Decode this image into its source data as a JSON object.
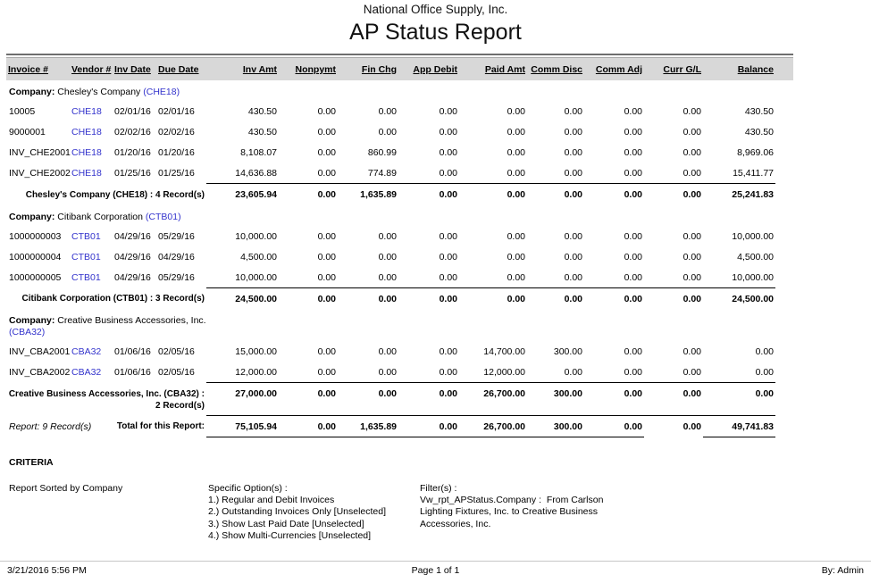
{
  "header": {
    "company": "National Office Supply, Inc.",
    "title": "AP Status Report"
  },
  "colors": {
    "link_blue": "#3333cc",
    "header_band": "#d8d8d8"
  },
  "table": {
    "columns": [
      {
        "key": "invoice",
        "label": "Invoice #",
        "align": "left"
      },
      {
        "key": "vendor",
        "label": "Vendor #",
        "align": "left"
      },
      {
        "key": "inv-date",
        "label": "Inv Date",
        "align": "left"
      },
      {
        "key": "due-date",
        "label": "Due Date",
        "align": "left"
      },
      {
        "key": "inv-amt",
        "label": "Inv Amt",
        "align": "right"
      },
      {
        "key": "nonpymt",
        "label": "Nonpymt",
        "align": "right"
      },
      {
        "key": "fin-chg",
        "label": "Fin Chg",
        "align": "right"
      },
      {
        "key": "app-debit",
        "label": "App Debit",
        "align": "right"
      },
      {
        "key": "paid-amt",
        "label": "Paid Amt",
        "align": "right"
      },
      {
        "key": "comm-disc",
        "label": "Comm Disc",
        "align": "right"
      },
      {
        "key": "comm-adj",
        "label": "Comm Adj",
        "align": "right"
      },
      {
        "key": "curr-gl",
        "label": "Curr G/L",
        "align": "right"
      },
      {
        "key": "balance",
        "label": "Balance",
        "align": "right"
      }
    ],
    "company_prefix": "Company:",
    "groups": [
      {
        "company_name": "Chesley's Company",
        "company_code": "(CHE18)",
        "rows": [
          {
            "invoice": "10005",
            "vendor": "CHE18",
            "inv_date": "02/01/16",
            "due_date": "02/01/16",
            "values": [
              "430.50",
              "0.00",
              "0.00",
              "0.00",
              "0.00",
              "0.00",
              "0.00",
              "0.00",
              "430.50"
            ]
          },
          {
            "invoice": "9000001",
            "vendor": "CHE18",
            "inv_date": "02/02/16",
            "due_date": "02/02/16",
            "values": [
              "430.50",
              "0.00",
              "0.00",
              "0.00",
              "0.00",
              "0.00",
              "0.00",
              "0.00",
              "430.50"
            ]
          },
          {
            "invoice": "INV_CHE2001",
            "vendor": "CHE18",
            "inv_date": "01/20/16",
            "due_date": "01/20/16",
            "values": [
              "8,108.07",
              "0.00",
              "860.99",
              "0.00",
              "0.00",
              "0.00",
              "0.00",
              "0.00",
              "8,969.06"
            ]
          },
          {
            "invoice": "INV_CHE2002",
            "vendor": "CHE18",
            "inv_date": "01/25/16",
            "due_date": "01/25/16",
            "values": [
              "14,636.88",
              "0.00",
              "774.89",
              "0.00",
              "0.00",
              "0.00",
              "0.00",
              "0.00",
              "15,411.77"
            ]
          }
        ],
        "subtotal_label": "Chesley's Company (CHE18) : 4 Record(s)",
        "subtotal_values": [
          "23,605.94",
          "0.00",
          "1,635.89",
          "0.00",
          "0.00",
          "0.00",
          "0.00",
          "0.00",
          "25,241.83"
        ]
      },
      {
        "company_name": "Citibank Corporation",
        "company_code": "(CTB01)",
        "rows": [
          {
            "invoice": "1000000003",
            "vendor": "CTB01",
            "inv_date": "04/29/16",
            "due_date": "05/29/16",
            "values": [
              "10,000.00",
              "0.00",
              "0.00",
              "0.00",
              "0.00",
              "0.00",
              "0.00",
              "0.00",
              "10,000.00"
            ]
          },
          {
            "invoice": "1000000004",
            "vendor": "CTB01",
            "inv_date": "04/29/16",
            "due_date": "04/29/16",
            "values": [
              "4,500.00",
              "0.00",
              "0.00",
              "0.00",
              "0.00",
              "0.00",
              "0.00",
              "0.00",
              "4,500.00"
            ]
          },
          {
            "invoice": "1000000005",
            "vendor": "CTB01",
            "inv_date": "04/29/16",
            "due_date": "05/29/16",
            "values": [
              "10,000.00",
              "0.00",
              "0.00",
              "0.00",
              "0.00",
              "0.00",
              "0.00",
              "0.00",
              "10,000.00"
            ]
          }
        ],
        "subtotal_label": "Citibank Corporation (CTB01) : 3 Record(s)",
        "subtotal_values": [
          "24,500.00",
          "0.00",
          "0.00",
          "0.00",
          "0.00",
          "0.00",
          "0.00",
          "0.00",
          "24,500.00"
        ]
      },
      {
        "company_name": "Creative Business Accessories, Inc.",
        "company_code": "(CBA32)",
        "rows": [
          {
            "invoice": "INV_CBA2001",
            "vendor": "CBA32",
            "inv_date": "01/06/16",
            "due_date": "02/05/16",
            "values": [
              "15,000.00",
              "0.00",
              "0.00",
              "0.00",
              "14,700.00",
              "300.00",
              "0.00",
              "0.00",
              "0.00"
            ]
          },
          {
            "invoice": "INV_CBA2002",
            "vendor": "CBA32",
            "inv_date": "01/06/16",
            "due_date": "02/05/16",
            "values": [
              "12,000.00",
              "0.00",
              "0.00",
              "0.00",
              "12,000.00",
              "0.00",
              "0.00",
              "0.00",
              "0.00"
            ]
          }
        ],
        "subtotal_label": "Creative Business Accessories, Inc. (CBA32) : 2 Record(s)",
        "subtotal_values": [
          "27,000.00",
          "0.00",
          "0.00",
          "0.00",
          "26,700.00",
          "300.00",
          "0.00",
          "0.00",
          "0.00"
        ]
      }
    ],
    "report_total": {
      "records_label": "Report: 9 Record(s)",
      "label": "Total for this Report:",
      "values": [
        "75,105.94",
        "0.00",
        "1,635.89",
        "0.00",
        "26,700.00",
        "300.00",
        "0.00",
        "0.00",
        "49,741.83"
      ]
    }
  },
  "criteria": {
    "heading": "CRITERIA",
    "sorted_by": "Report Sorted by Company",
    "options_title": "Specific Option(s) :",
    "options": [
      "1.) Regular and Debit Invoices",
      "2.) Outstanding Invoices Only [Unselected]",
      "3.) Show Last Paid Date [Unselected]",
      "4.) Show Multi-Currencies [Unselected]"
    ],
    "filters_title": "Filter(s) :",
    "filter_lines": [
      "Vw_rpt_APStatus.Company :  From Carlson",
      "Lighting Fixtures, Inc. to Creative Business",
      "Accessories, Inc."
    ]
  },
  "footer": {
    "date": "3/21/2016 5:56 PM",
    "page": "Page 1 of 1",
    "by": "By: Admin"
  }
}
